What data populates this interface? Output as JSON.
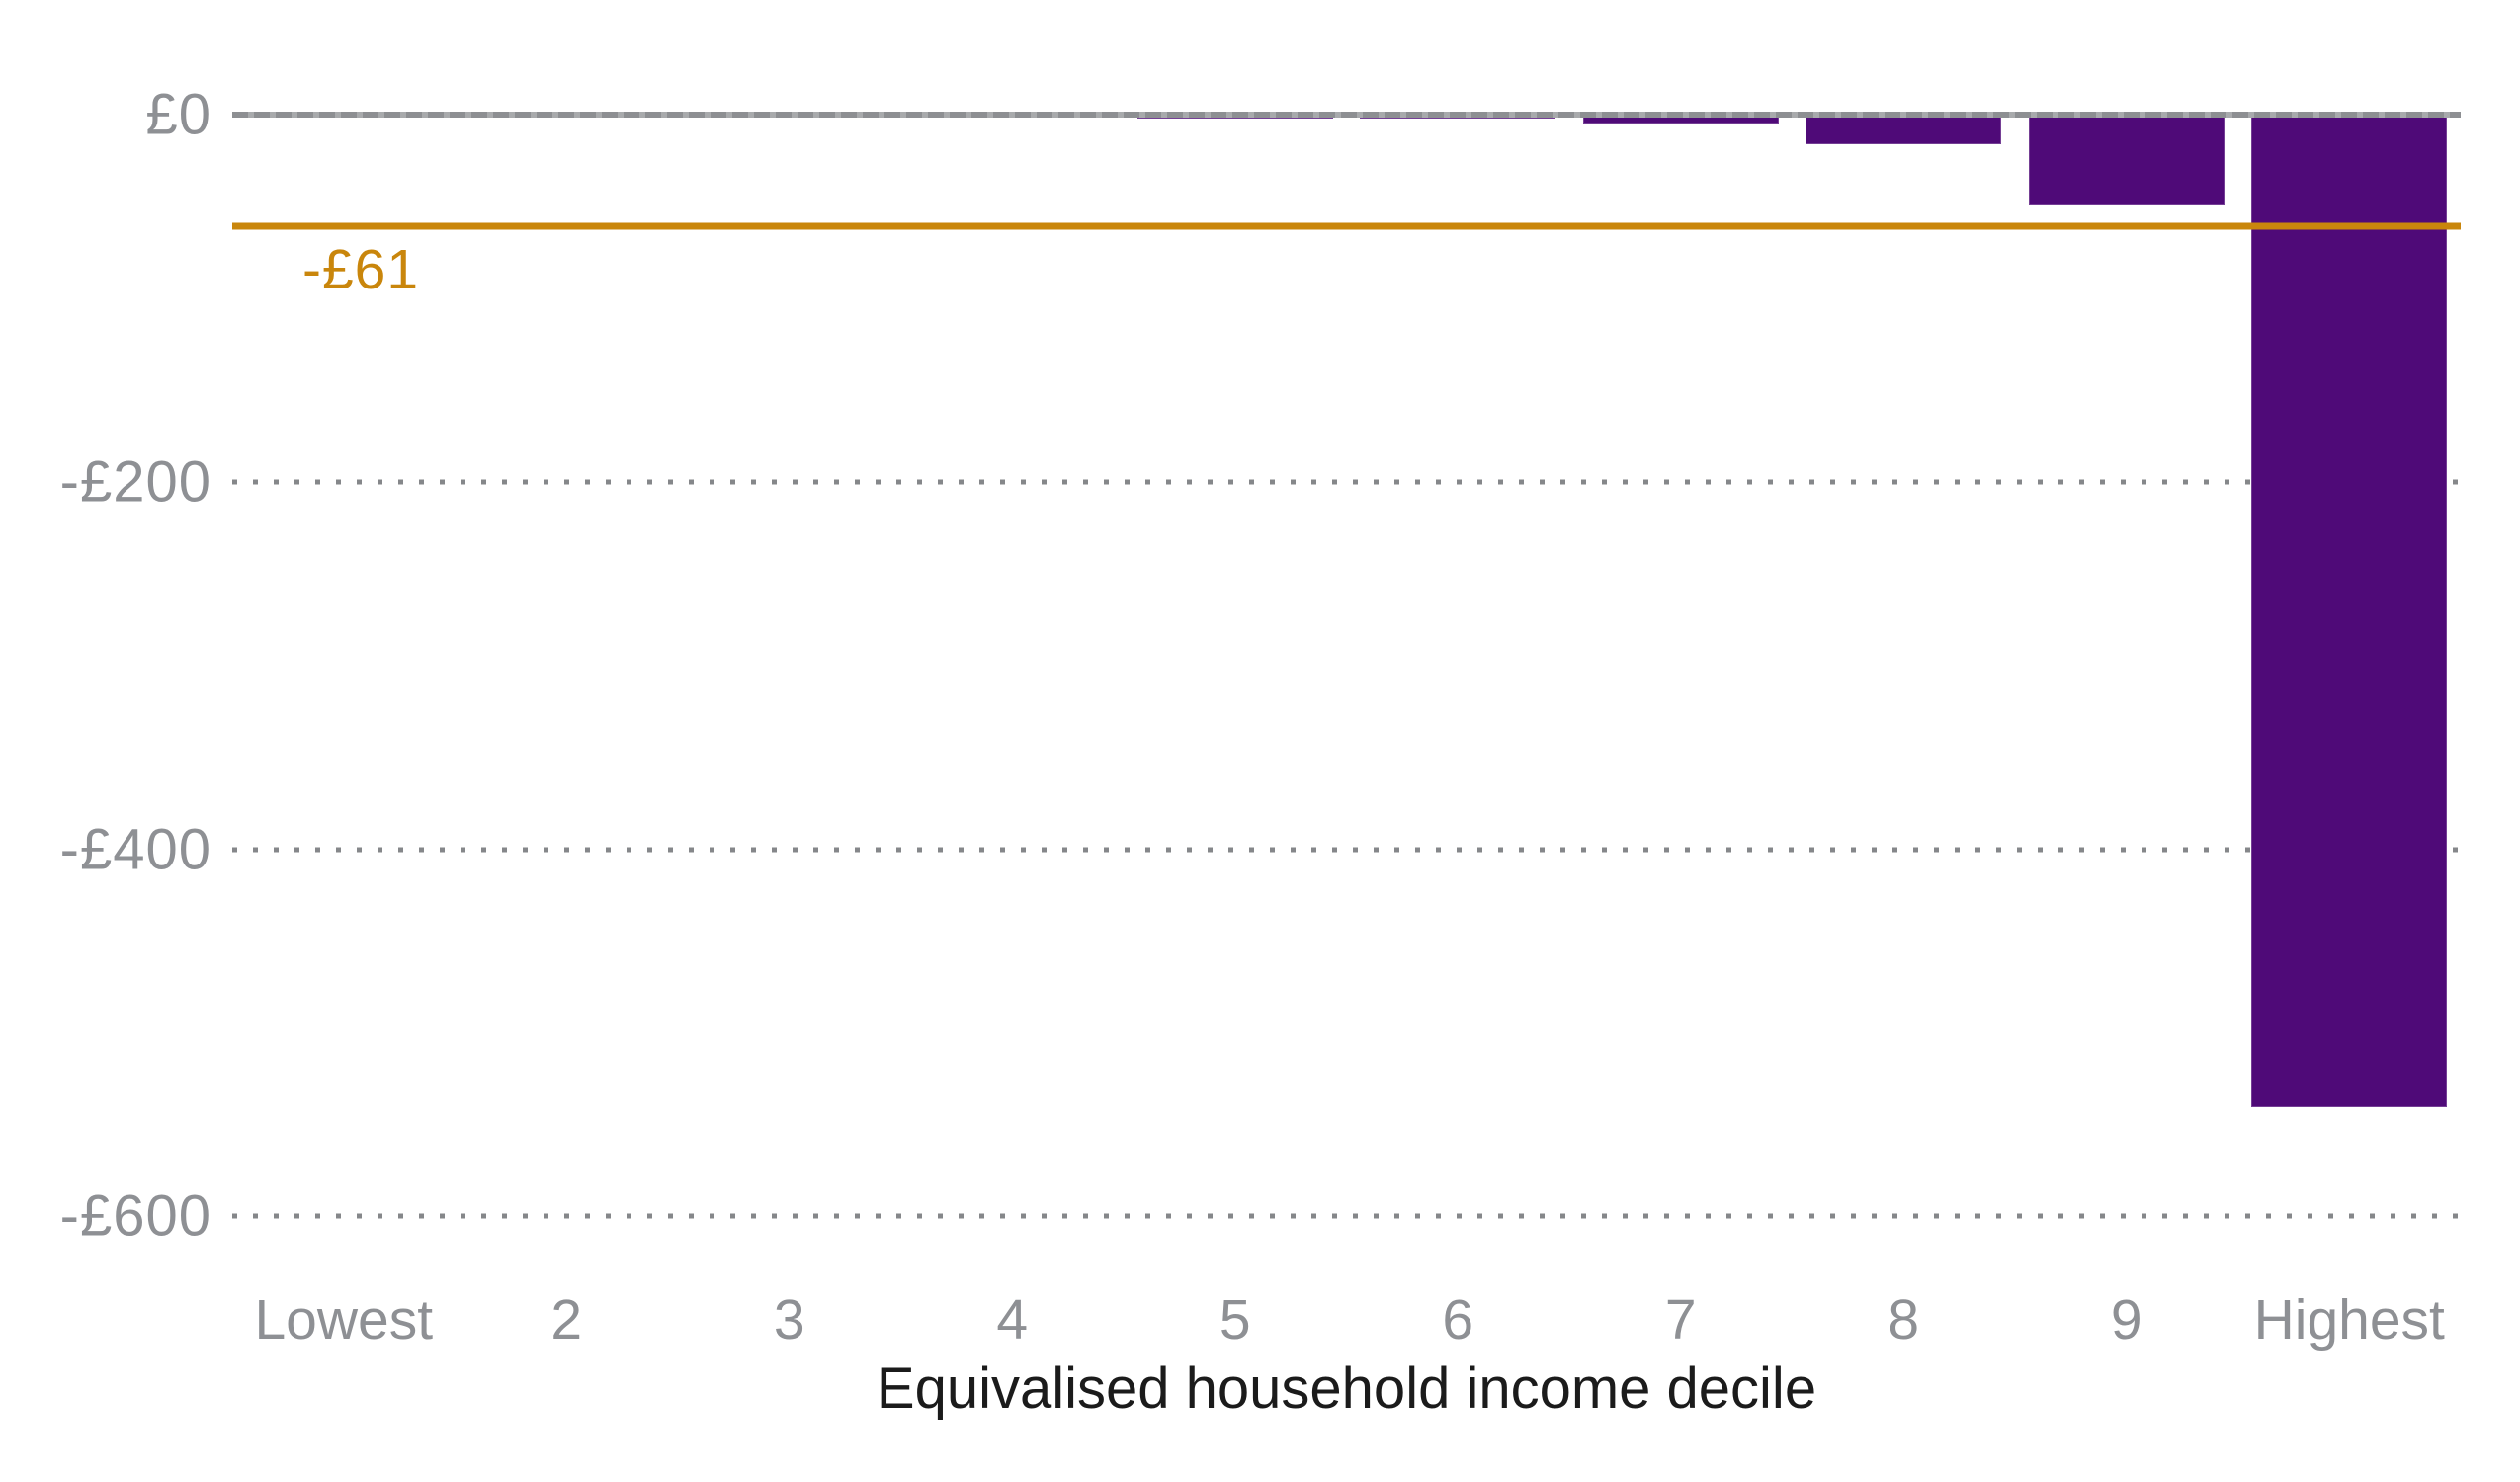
{
  "chart_data": {
    "type": "bar",
    "title": "",
    "xlabel": "Equivalised household income decile",
    "ylabel": "",
    "categories": [
      "Lowest",
      "2",
      "3",
      "4",
      "5",
      "6",
      "7",
      "8",
      "9",
      "Highest"
    ],
    "values": [
      0,
      0,
      0,
      0,
      -2,
      -2,
      -5,
      -16,
      -49,
      -540
    ],
    "ylim": [
      -600,
      0
    ],
    "yticks": [
      {
        "value": 0,
        "label": "£0"
      },
      {
        "value": -200,
        "label": "-£200"
      },
      {
        "value": -400,
        "label": "-£400"
      },
      {
        "value": -600,
        "label": "-£600"
      }
    ],
    "grid": "horizontal-dotted",
    "legend": "none",
    "bar_color": "#4F0A78",
    "average_line": {
      "value": -61,
      "label": "-£61",
      "color": "#C9860C"
    },
    "axis_tick_color": "#8E9094",
    "xlabel_color": "#1B1B1B",
    "zero_line_color": "#9B9DA0"
  }
}
